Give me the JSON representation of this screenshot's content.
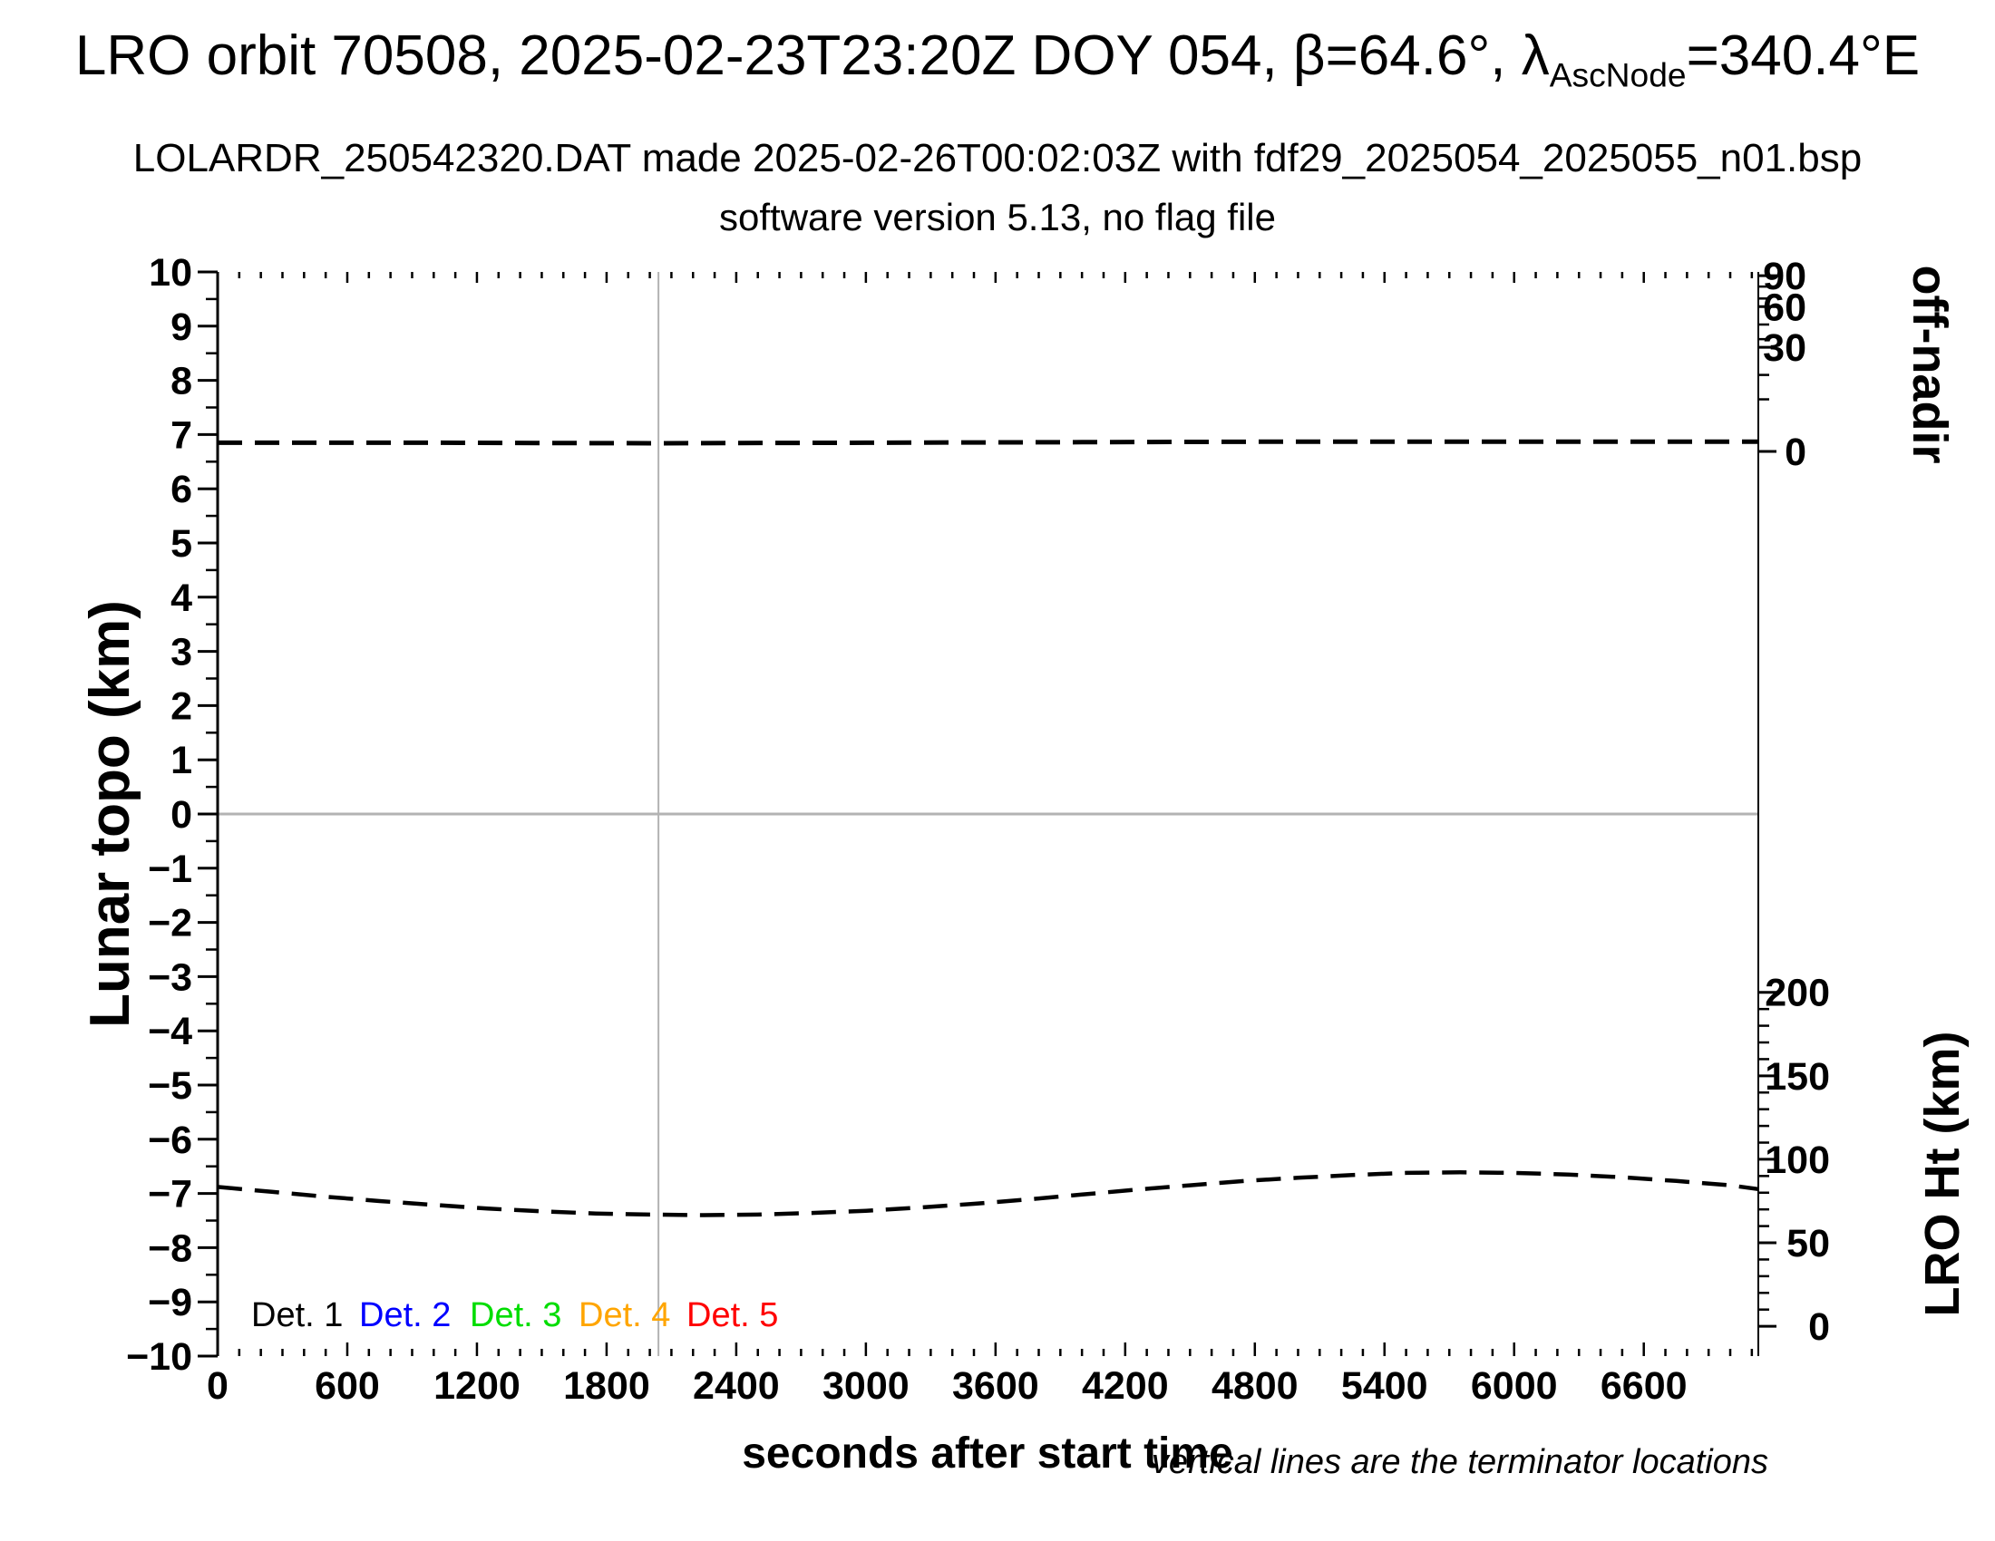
{
  "header": {
    "title_prefix": "LRO orbit 70508, 2025-02-23T23:20Z DOY 054, β=64.6°, λ",
    "title_subscript": "AscNode",
    "title_suffix": "=340.4°E",
    "subtitle1": "LOLARDR_250542320.DAT made 2025-02-26T00:02:03Z with fdf29_2025054_2025055_n01.bsp",
    "subtitle2": "software version 5.13, no flag file"
  },
  "chart_data": {
    "type": "line",
    "title": "LRO orbit 70508, 2025-02-23T23:20Z DOY 054, β=64.6°, λAscNode=340.4°E",
    "grid": "off",
    "x_axis": {
      "label": "seconds after start time",
      "range": [
        0,
        7130
      ],
      "major_tick_values": [
        0,
        600,
        1200,
        1800,
        2400,
        3000,
        3600,
        4200,
        4800,
        5400,
        6000,
        6600
      ],
      "major_tick_labels": [
        "0",
        "600",
        "1200",
        "1800",
        "2400",
        "3000",
        "3600",
        "4200",
        "4800",
        "5400",
        "6000",
        "6600"
      ],
      "minor_tick_interval": 100
    },
    "y_axis_left": {
      "label": "Lunar topo (km)",
      "range": [
        -10,
        10
      ],
      "major_tick_values": [
        10,
        9,
        8,
        7,
        6,
        5,
        4,
        3,
        2,
        1,
        0,
        -1,
        -2,
        -3,
        -4,
        -5,
        -6,
        -7,
        -8,
        -9,
        -10
      ],
      "major_tick_labels": [
        "10",
        "9",
        "8",
        "7",
        "6",
        "5",
        "4",
        "3",
        "2",
        "1",
        "0",
        "−1",
        "−2",
        "−3",
        "−4",
        "−5",
        "−6",
        "−7",
        "−8",
        "−9",
        "−10"
      ],
      "minor_tick_interval": 0.5
    },
    "y_axis_right_top": {
      "label": "off-nadir",
      "units": "degrees",
      "scale": "nonlinear",
      "major_tick_labels": [
        "90",
        "60",
        "30",
        "0"
      ],
      "major_tick_pos_topo_units": [
        9.93,
        9.36,
        8.61,
        6.69
      ],
      "minor_tick_pos_topo_units": [
        9.73,
        9.51,
        9.03,
        8.76,
        8.1,
        7.65
      ]
    },
    "y_axis_right_bottom": {
      "label": "LRO Ht (km)",
      "major_tick_labels": [
        "200",
        "150",
        "100",
        "50",
        "0"
      ],
      "major_tick_pos_topo_units": [
        -3.29,
        -4.83,
        -6.37,
        -7.91,
        -9.45
      ],
      "minors_between_majors": 4
    },
    "reference_lines": {
      "horizontal_at_topo_km": 0,
      "terminator_vertical_at_s": 2040,
      "color": "#b3b3b3"
    },
    "series": [
      {
        "name": "off-nadir angle",
        "style": "dashed",
        "color": "#000000",
        "description": "nearly constant line just above the 0° off-nadir tick",
        "x_s": [
          0,
          1000,
          2000,
          3000,
          4000,
          5000,
          6000,
          7130
        ],
        "y_topo_units": [
          6.85,
          6.85,
          6.84,
          6.85,
          6.86,
          6.87,
          6.87,
          6.87
        ]
      },
      {
        "name": "LRO height",
        "style": "dashed",
        "color": "#000000",
        "x_s": [
          0,
          250,
          500,
          750,
          1000,
          1250,
          1500,
          1750,
          2000,
          2250,
          2500,
          2750,
          3000,
          3250,
          3500,
          3750,
          4000,
          4250,
          4500,
          4750,
          5000,
          5250,
          5500,
          5750,
          6000,
          6250,
          6500,
          6750,
          7000,
          7130
        ],
        "y_topo_units": [
          -6.88,
          -6.97,
          -7.06,
          -7.14,
          -7.21,
          -7.28,
          -7.33,
          -7.37,
          -7.39,
          -7.4,
          -7.39,
          -7.36,
          -7.32,
          -7.26,
          -7.19,
          -7.11,
          -7.02,
          -6.93,
          -6.85,
          -6.77,
          -6.71,
          -6.66,
          -6.62,
          -6.61,
          -6.62,
          -6.65,
          -6.7,
          -6.77,
          -6.85,
          -6.92
        ],
        "y_km_est": [
          83.4,
          80.5,
          77.6,
          75.0,
          72.7,
          70.5,
          68.8,
          67.5,
          66.9,
          66.6,
          66.9,
          67.9,
          69.2,
          71.1,
          73.4,
          76.0,
          78.9,
          81.8,
          84.4,
          87.0,
          89.0,
          90.6,
          91.9,
          92.2,
          91.9,
          90.9,
          89.3,
          87.0,
          84.4,
          82.2
        ]
      }
    ],
    "legend": {
      "position": "bottom-left inside plot",
      "items": [
        {
          "label": "Det. 1",
          "color": "#000000"
        },
        {
          "label": "Det. 2",
          "color": "#0000ff"
        },
        {
          "label": "Det. 3",
          "color": "#00dd00"
        },
        {
          "label": "Det. 4",
          "color": "#ffa500"
        },
        {
          "label": "Det. 5",
          "color": "#ff0000"
        }
      ],
      "note": "no detector topography traces are plotted"
    },
    "footnote": "vertical lines are the terminator locations"
  }
}
